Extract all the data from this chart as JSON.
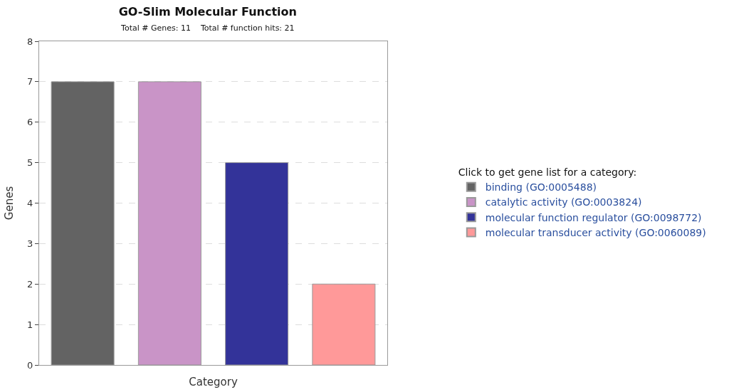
{
  "chart_data": {
    "type": "bar",
    "title": "GO-Slim Molecular Function",
    "subtitle": "Total # Genes: 11    Total # function hits: 21",
    "xlabel": "Category",
    "ylabel": "Genes",
    "legend_title": "Click to get gene list for a category:",
    "categories": [
      null,
      null,
      null,
      null
    ],
    "series": [
      {
        "name": "binding (GO:0005488)",
        "color": "#636363",
        "values": [
          7,
          null,
          null,
          null
        ]
      },
      {
        "name": "catalytic activity (GO:0003824)",
        "color": "#c994c7",
        "values": [
          null,
          7,
          null,
          null
        ]
      },
      {
        "name": "molecular function regulator (GO:0098772)",
        "color": "#333399",
        "values": [
          null,
          null,
          5,
          null
        ]
      },
      {
        "name": "molecular transducer activity (GO:0060089)",
        "color": "#ff9999",
        "values": [
          null,
          null,
          null,
          2
        ]
      }
    ],
    "ylim": [
      0,
      8
    ],
    "yticks": [
      0,
      1,
      2,
      3,
      4,
      5,
      6,
      7,
      8
    ],
    "grid": "y",
    "legend": "right"
  }
}
